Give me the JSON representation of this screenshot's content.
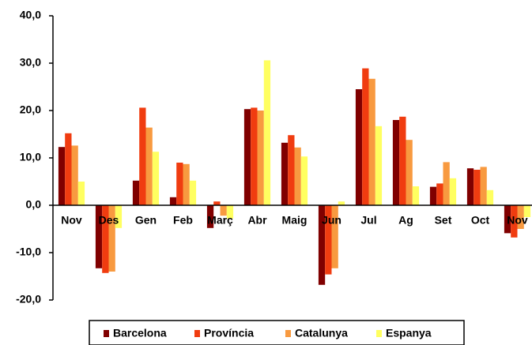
{
  "chart_data": {
    "type": "bar",
    "categories": [
      "Nov",
      "Des",
      "Gen",
      "Feb",
      "Març",
      "Abr",
      "Maig",
      "Jun",
      "Jul",
      "Ag",
      "Set",
      "Oct",
      "Nov"
    ],
    "series": [
      {
        "name": "Barcelona",
        "color": "#800000",
        "values": [
          12.3,
          -13.3,
          5.2,
          1.7,
          -4.8,
          20.3,
          13.2,
          -16.8,
          24.5,
          18.0,
          3.9,
          7.8,
          -5.9
        ]
      },
      {
        "name": "Província",
        "color": "#f03c10",
        "values": [
          15.2,
          -14.3,
          20.6,
          9.0,
          0.8,
          20.6,
          14.8,
          -14.6,
          28.9,
          18.7,
          4.6,
          7.5,
          -6.8
        ]
      },
      {
        "name": "Catalunya",
        "color": "#f89a40",
        "values": [
          12.6,
          -14.0,
          16.4,
          8.7,
          -2.2,
          20.0,
          12.2,
          -13.3,
          26.7,
          13.8,
          9.1,
          8.1,
          -5.0
        ]
      },
      {
        "name": "Espanya",
        "color": "#ffff60",
        "values": [
          5.0,
          -4.8,
          11.3,
          5.2,
          -2.8,
          30.6,
          10.3,
          0.8,
          16.7,
          4.0,
          5.7,
          3.2,
          -2.5
        ]
      }
    ],
    "ylim": [
      -20,
      40
    ],
    "yticks": [
      {
        "value": -20,
        "label": "-20,0"
      },
      {
        "value": -10,
        "label": "-10,0"
      },
      {
        "value": 0,
        "label": "0,0"
      },
      {
        "value": 10,
        "label": "10,0"
      },
      {
        "value": 20,
        "label": "20,0"
      },
      {
        "value": 30,
        "label": "30,0"
      },
      {
        "value": 40,
        "label": "40,0"
      }
    ],
    "legend": "bottom"
  }
}
